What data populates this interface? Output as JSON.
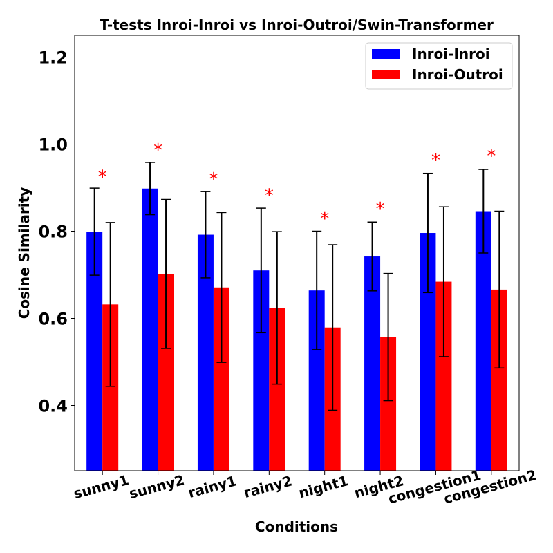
{
  "chart_data": {
    "type": "bar",
    "title": "T-tests Inroi-Inroi vs Inroi-Outroi/Swin-Transformer",
    "xlabel": "Conditions",
    "ylabel": "Cosine Similarity",
    "ylim": [
      0.25,
      1.25
    ],
    "yticks": [
      "0.4",
      "0.6",
      "0.8",
      "1.0",
      "1.2"
    ],
    "categories": [
      "sunny1",
      "sunny2",
      "rainy1",
      "rainy2",
      "night1",
      "night2",
      "congestion1",
      "congestion2"
    ],
    "series": [
      {
        "name": "Inroi-Inroi",
        "color": "#0000ff",
        "values": [
          0.799,
          0.898,
          0.792,
          0.71,
          0.664,
          0.742,
          0.796,
          0.846
        ],
        "errors": [
          0.1,
          0.06,
          0.099,
          0.143,
          0.136,
          0.079,
          0.137,
          0.096
        ]
      },
      {
        "name": "Inroi-Outroi",
        "color": "#ff0000",
        "values": [
          0.632,
          0.702,
          0.671,
          0.624,
          0.579,
          0.557,
          0.684,
          0.666
        ],
        "errors": [
          0.188,
          0.171,
          0.172,
          0.175,
          0.19,
          0.146,
          0.172,
          0.18
        ]
      }
    ],
    "significance": {
      "marker": "*",
      "color": "#ff0000",
      "y": [
        0.94,
        1.001,
        0.934,
        0.897,
        0.844,
        0.866,
        0.978,
        0.987
      ]
    },
    "legend_position": "top-right",
    "grid": false
  }
}
